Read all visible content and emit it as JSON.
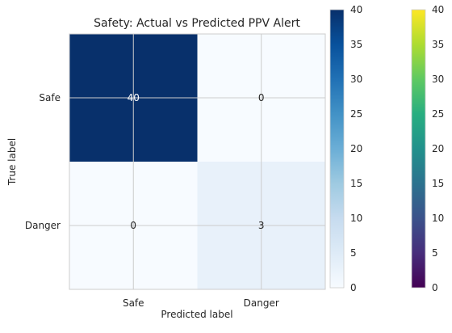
{
  "chart_data": {
    "type": "heatmap",
    "title": "Safety: Actual vs Predicted PPV Alert",
    "xlabel": "Predicted label",
    "ylabel": "True label",
    "x_categories": [
      "Safe",
      "Danger"
    ],
    "y_categories": [
      "Safe",
      "Danger"
    ],
    "values": [
      [
        40,
        0
      ],
      [
        0,
        3
      ]
    ],
    "cell_labels": [
      [
        "40",
        "0"
      ],
      [
        "0",
        "3"
      ]
    ],
    "colormap": "Blues",
    "vmin": 0,
    "vmax": 40,
    "grid": true,
    "colorbars": [
      {
        "colormap": "Blues",
        "range": [
          0,
          40
        ],
        "ticks": [
          0,
          5,
          10,
          15,
          20,
          25,
          30,
          35,
          40
        ]
      },
      {
        "colormap": "viridis",
        "range": [
          0,
          40
        ],
        "ticks": [
          0,
          5,
          10,
          15,
          20,
          25,
          30,
          35,
          40
        ]
      }
    ]
  }
}
